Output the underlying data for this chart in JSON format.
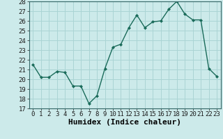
{
  "x": [
    0,
    1,
    2,
    3,
    4,
    5,
    6,
    7,
    8,
    9,
    10,
    11,
    12,
    13,
    14,
    15,
    16,
    17,
    18,
    19,
    20,
    21,
    22,
    23
  ],
  "y": [
    21.5,
    20.2,
    20.2,
    20.8,
    20.7,
    19.3,
    19.3,
    17.5,
    18.3,
    21.1,
    23.3,
    23.6,
    25.3,
    26.6,
    25.3,
    25.9,
    26.0,
    27.2,
    28.0,
    26.7,
    26.1,
    26.1,
    21.1,
    20.3
  ],
  "xlabel": "Humidex (Indice chaleur)",
  "ylim": [
    17,
    28
  ],
  "yticks": [
    17,
    18,
    19,
    20,
    21,
    22,
    23,
    24,
    25,
    26,
    27,
    28
  ],
  "xticks": [
    0,
    1,
    2,
    3,
    4,
    5,
    6,
    7,
    8,
    9,
    10,
    11,
    12,
    13,
    14,
    15,
    16,
    17,
    18,
    19,
    20,
    21,
    22,
    23
  ],
  "line_color": "#1a6b5a",
  "marker": "D",
  "marker_size": 2.0,
  "bg_color": "#cceaea",
  "grid_color": "#aad4d4",
  "xlabel_fontsize": 8,
  "tick_fontsize": 6.5,
  "lw": 1.0
}
